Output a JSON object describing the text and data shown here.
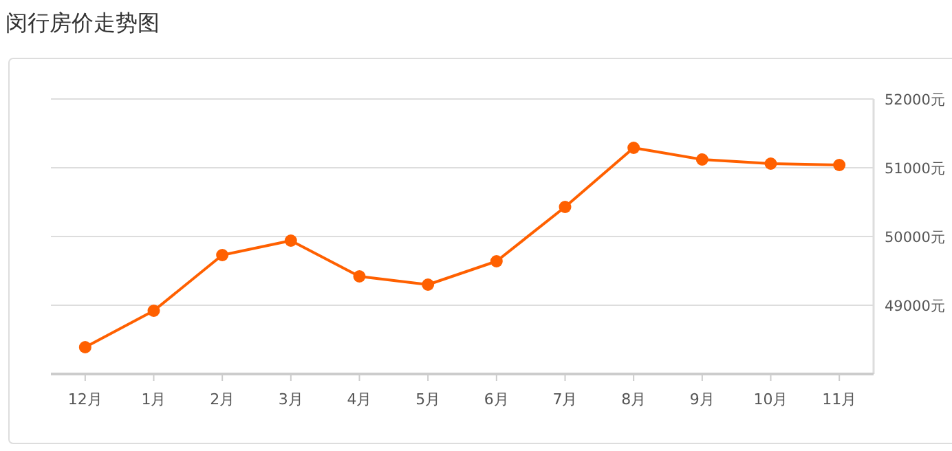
{
  "chart_data": {
    "type": "line",
    "title": "闵行房价走势图",
    "categories": [
      "12月",
      "1月",
      "2月",
      "3月",
      "4月",
      "5月",
      "6月",
      "7月",
      "8月",
      "9月",
      "10月",
      "11月"
    ],
    "series": [
      {
        "color": "#ff6000",
        "values": [
          48390,
          48920,
          49730,
          49940,
          49420,
          49300,
          49640,
          50430,
          51290,
          51120,
          51060,
          51040
        ]
      }
    ],
    "ylim": [
      48000,
      52000
    ],
    "yticks": [
      {
        "value": 49000,
        "label": "49000元"
      },
      {
        "value": 50000,
        "label": "50000元"
      },
      {
        "value": 51000,
        "label": "51000元"
      },
      {
        "value": 52000,
        "label": "52000元"
      }
    ],
    "grid": "y",
    "marker": "circle",
    "line_style": "solid"
  }
}
